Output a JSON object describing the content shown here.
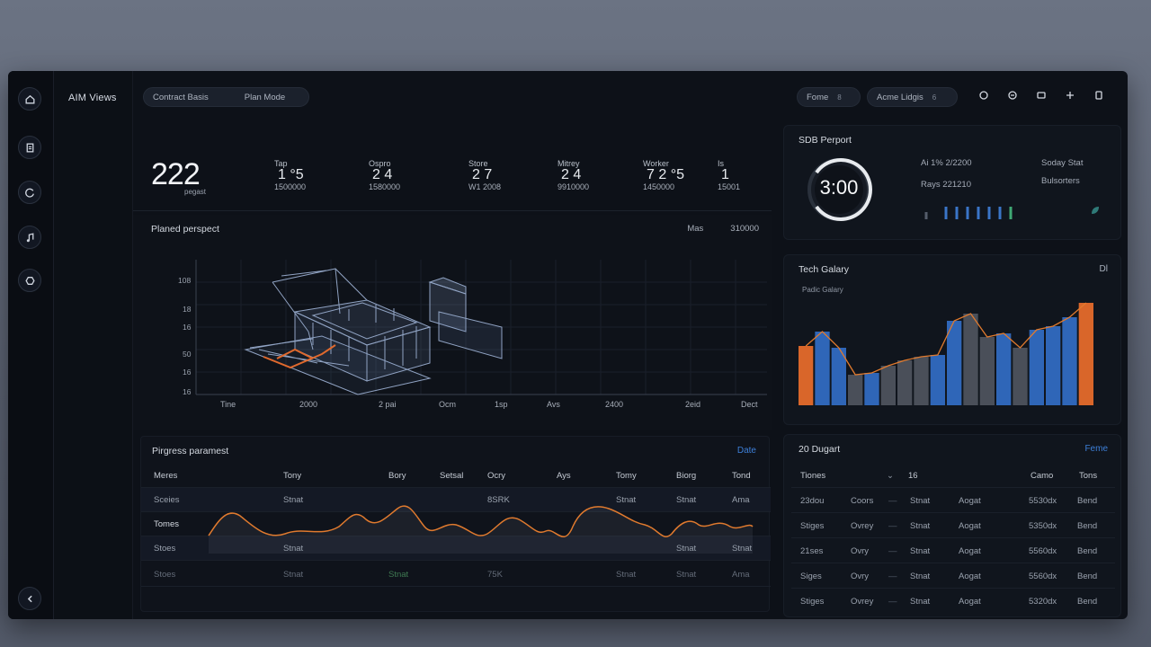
{
  "app": {
    "title": "AIM Views"
  },
  "topbar": {
    "pill1": {
      "left": "Contract Basis",
      "right": "Plan Mode"
    },
    "pill2": {
      "label": "Fome",
      "value": "8"
    },
    "pill3": {
      "label": "Acme Lidgis",
      "value": "6"
    }
  },
  "stats": {
    "big": {
      "value": "222",
      "sub": "pegast"
    },
    "items": [
      {
        "label": "Tap",
        "value": "1 °5",
        "foot": "1500000"
      },
      {
        "label": "Ospro",
        "value": "2 4",
        "foot": "1580000"
      },
      {
        "label": "Store",
        "value": "2 7",
        "foot": "W1 2008"
      },
      {
        "label": "Mitrey",
        "value": "2 4",
        "foot": "9910000"
      },
      {
        "label": "Worker",
        "value": "7 2 °5",
        "foot": "1450000"
      },
      {
        "label": "Is",
        "value": "1",
        "foot": "15001"
      }
    ]
  },
  "plan": {
    "title": "Planed perspect",
    "meta_left": "Mas",
    "meta_right": "310000",
    "y_labels": [
      "108",
      "18",
      "16",
      "50",
      "16",
      "16"
    ],
    "x_labels": [
      "Tine",
      "2000",
      "2 pai",
      "Ocm",
      "1sp",
      "Avs",
      "2400",
      "2eid",
      "Dect"
    ]
  },
  "progress": {
    "title": "Pirgress paramest",
    "link": "Date",
    "header": [
      "Meres",
      "Tony",
      "Bory",
      "Setsal",
      "Ocry",
      "Ays",
      "Tomy",
      "Biorg",
      "Tond"
    ],
    "rows": [
      [
        "Sceies",
        "Stnat",
        "",
        "",
        "8SRK",
        "",
        "Stnat",
        "Stnat",
        "Ama"
      ],
      [
        "Tomes",
        "",
        "",
        "",
        "",
        "",
        "",
        "",
        ""
      ],
      [
        "Stoes",
        "Stnat",
        "",
        "",
        "",
        "",
        "",
        "Stnat",
        "Stnat"
      ],
      [
        "Stoes",
        "Stnat",
        "Stnat",
        "",
        "75K",
        "",
        "Stnat",
        "Stnat",
        "Ama"
      ]
    ]
  },
  "report": {
    "title": "SDB Perport",
    "gauge": "3:00",
    "kv1": "Ai 1% 2/2200",
    "kv2": "Rays 221210",
    "kv3": "Soday Stat",
    "kv4": "Bulsorters"
  },
  "trend": {
    "title": "Tech Galary",
    "sub": "Padic Galary",
    "link": "Dl"
  },
  "chart_data": {
    "type": "bar",
    "values": [
      33,
      41,
      32,
      17,
      18,
      22,
      25,
      27,
      28,
      47,
      51,
      38,
      40,
      32,
      42,
      44,
      49,
      57
    ]
  },
  "transfer": {
    "title": "20 Dugart",
    "link": "Feme",
    "header": [
      "Tiones",
      "16",
      "Camo",
      "Tons"
    ],
    "rows": [
      [
        "23dou",
        "Coors",
        "Stnat",
        "Aogat",
        "5530dx",
        "Bend"
      ],
      [
        "Stiges",
        "Ovrey",
        "Stnat",
        "Aogat",
        "5350dx",
        "Bend"
      ],
      [
        "21ses",
        "Ovry",
        "Stnat",
        "Aogat",
        "5560dx",
        "Bend"
      ],
      [
        "Siges",
        "Ovry",
        "Stnat",
        "Aogat",
        "5560dx",
        "Bend"
      ],
      [
        "Stiges",
        "Ovrey",
        "Stnat",
        "Aogat",
        "5320dx",
        "Bend"
      ]
    ]
  },
  "colors": {
    "accent": "#3d7fd8",
    "orange": "#d9662a",
    "blue": "#2f66b8",
    "grey": "#4a4f59"
  }
}
